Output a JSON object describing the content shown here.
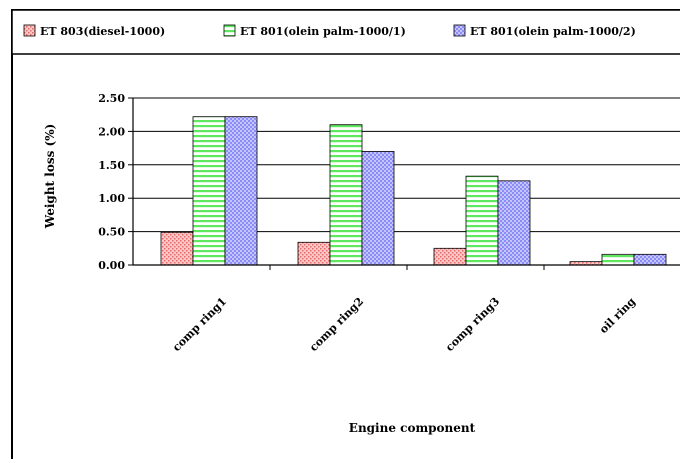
{
  "chart_data": {
    "type": "bar",
    "title": "",
    "xlabel": "Engine component",
    "ylabel": "Weight loss (%)",
    "ylim": [
      0,
      2.5
    ],
    "yticks": [
      "0.00",
      "0.50",
      "1.00",
      "1.50",
      "2.00",
      "2.50"
    ],
    "categories": [
      "comp ring1",
      "comp ring2",
      "comp ring3",
      "oil ring"
    ],
    "series": [
      {
        "name": "ET 803(diesel-1000)",
        "values": [
          0.49,
          0.34,
          0.25,
          0.05
        ],
        "color": "#ffb3b3",
        "pattern": "dots"
      },
      {
        "name": "ET 801(olein palm-1000/1)",
        "values": [
          2.22,
          2.1,
          1.33,
          0.16
        ],
        "color": "#7df27d",
        "pattern": "hlines"
      },
      {
        "name": "ET 801(olein palm-1000/2)",
        "values": [
          2.22,
          1.7,
          1.26,
          0.16
        ],
        "color": "#a9a9ff",
        "pattern": "checker"
      }
    ],
    "grid": true,
    "legend_position": "top"
  }
}
